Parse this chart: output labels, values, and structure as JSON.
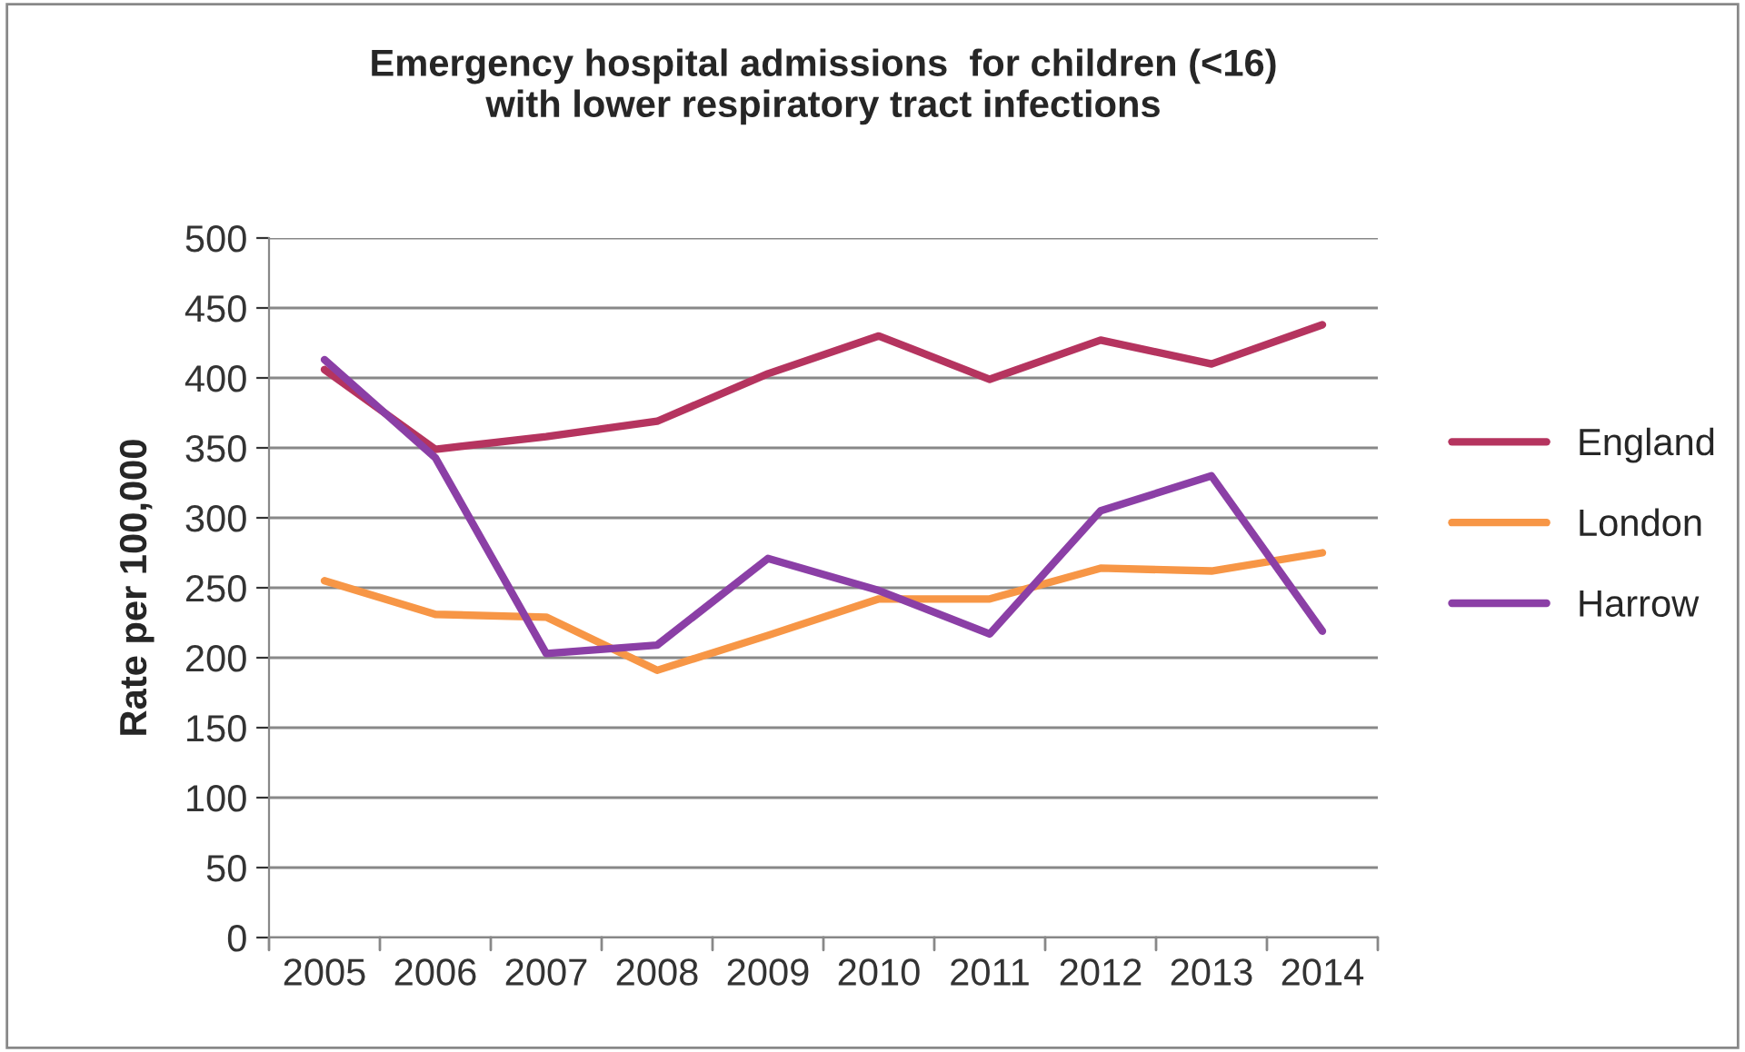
{
  "chart_data": {
    "type": "line",
    "title": "Emergency hospital admissions  for children (<16)\nwith lower respiratory tract infections",
    "ylabel": "Rate per 100,000",
    "categories": [
      "2005",
      "2006",
      "2007",
      "2008",
      "2009",
      "2010",
      "2011",
      "2012",
      "2013",
      "2014"
    ],
    "series": [
      {
        "name": "England",
        "color": "#b5345f",
        "values": [
          406,
          349,
          358,
          369,
          403,
          430,
          399,
          427,
          410,
          438
        ]
      },
      {
        "name": "London",
        "color": "#f79646",
        "values": [
          255,
          231,
          229,
          191,
          216,
          242,
          242,
          264,
          262,
          275
        ]
      },
      {
        "name": "Harrow",
        "color": "#8b3fa6",
        "values": [
          413,
          343,
          203,
          209,
          271,
          248,
          217,
          305,
          330,
          219
        ]
      }
    ],
    "ylim": [
      0,
      500
    ],
    "yticks": [
      0,
      50,
      100,
      150,
      200,
      250,
      300,
      350,
      400,
      450,
      500
    ],
    "grid": "y",
    "legend": "right",
    "marker": "none",
    "line_style": "solid"
  }
}
